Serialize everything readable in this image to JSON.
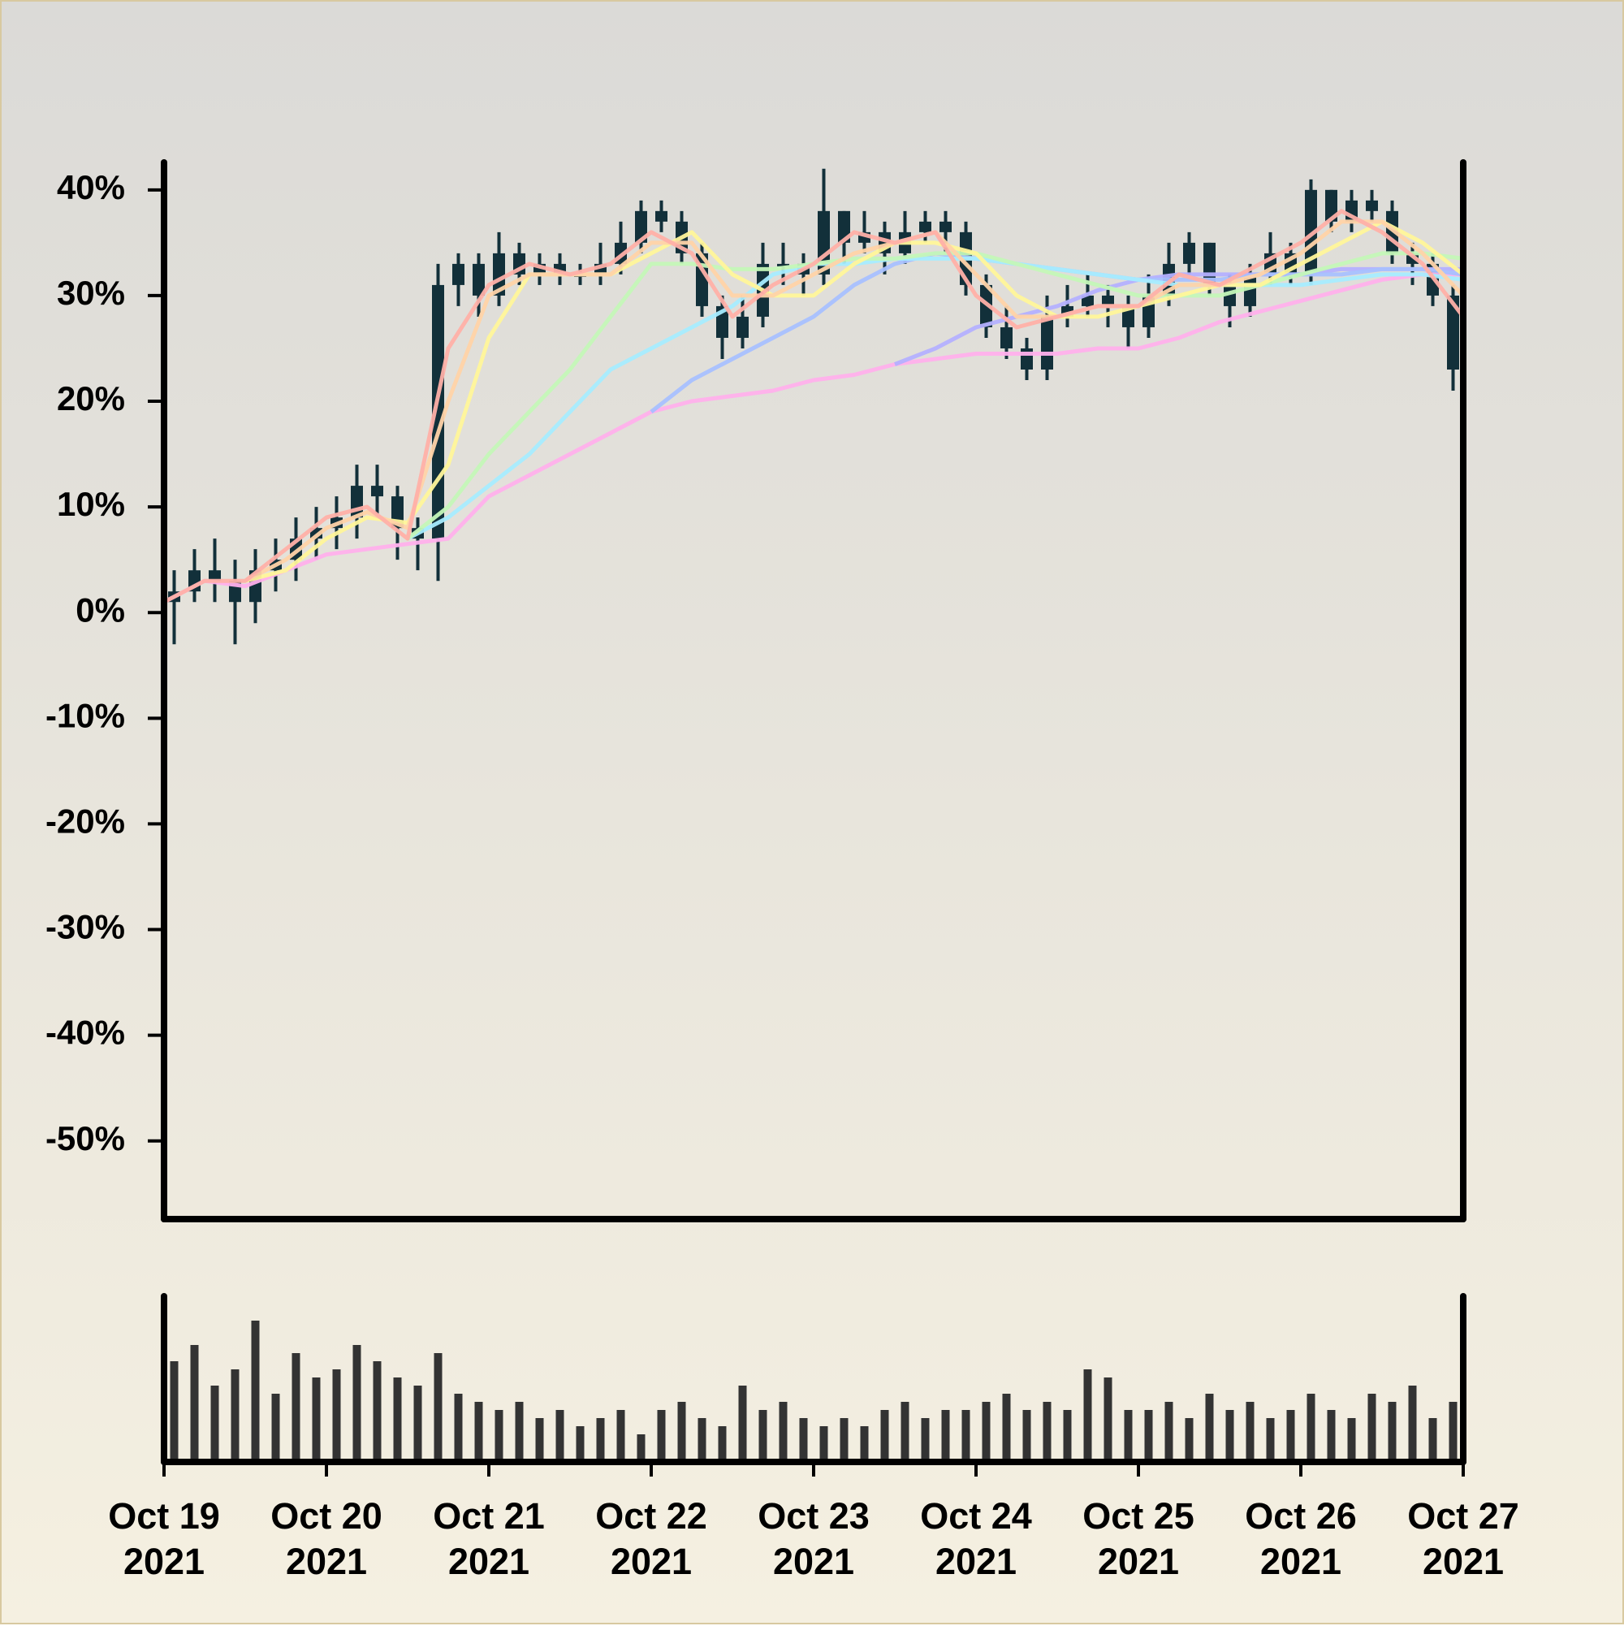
{
  "chart_data": {
    "type": "candlestick",
    "candle_color": "#12303a",
    "xlim": [
      "2021-10-19T00:00",
      "2021-10-27T00:00"
    ],
    "xticks": [
      {
        "value": "2021-10-19T00:00",
        "label": "Oct 19 2021"
      },
      {
        "value": "2021-10-20T00:00",
        "label": "Oct 20 2021"
      },
      {
        "value": "2021-10-21T00:00",
        "label": "Oct 21 2021"
      },
      {
        "value": "2021-10-22T00:00",
        "label": "Oct 22 2021"
      },
      {
        "value": "2021-10-23T00:00",
        "label": "Oct 23 2021"
      },
      {
        "value": "2021-10-24T00:00",
        "label": "Oct 24 2021"
      },
      {
        "value": "2021-10-25T00:00",
        "label": "Oct 25 2021"
      },
      {
        "value": "2021-10-26T00:00",
        "label": "Oct 26 2021"
      },
      {
        "value": "2021-10-27T00:00",
        "label": "Oct 27 2021"
      }
    ],
    "ylim": [
      -57.4,
      42.6
    ],
    "yticks": [
      {
        "value": 40,
        "label": "40%"
      },
      {
        "value": 30,
        "label": "30%"
      },
      {
        "value": 20,
        "label": "20%"
      },
      {
        "value": 10,
        "label": "10%"
      },
      {
        "value": 0,
        "label": "0%"
      },
      {
        "value": -10,
        "label": "-10%"
      },
      {
        "value": -20,
        "label": "-20%"
      },
      {
        "value": -30,
        "label": "-30%"
      },
      {
        "value": -40,
        "label": "-40%"
      },
      {
        "value": -50,
        "label": "-50%"
      }
    ],
    "x": [
      "2021-10-19T01:30",
      "2021-10-19T04:30",
      "2021-10-19T07:30",
      "2021-10-19T10:30",
      "2021-10-19T13:30",
      "2021-10-19T16:30",
      "2021-10-19T19:30",
      "2021-10-19T22:30",
      "2021-10-20T01:30",
      "2021-10-20T04:30",
      "2021-10-20T07:30",
      "2021-10-20T10:30",
      "2021-10-20T13:30",
      "2021-10-20T16:30",
      "2021-10-20T19:30",
      "2021-10-20T22:30",
      "2021-10-21T01:30",
      "2021-10-21T04:30",
      "2021-10-21T07:30",
      "2021-10-21T10:30",
      "2021-10-21T13:30",
      "2021-10-21T16:30",
      "2021-10-21T19:30",
      "2021-10-21T22:30",
      "2021-10-22T01:30",
      "2021-10-22T04:30",
      "2021-10-22T07:30",
      "2021-10-22T10:30",
      "2021-10-22T13:30",
      "2021-10-22T16:30",
      "2021-10-22T19:30",
      "2021-10-22T22:30",
      "2021-10-23T01:30",
      "2021-10-23T04:30",
      "2021-10-23T07:30",
      "2021-10-23T10:30",
      "2021-10-23T13:30",
      "2021-10-23T16:30",
      "2021-10-23T19:30",
      "2021-10-23T22:30",
      "2021-10-24T01:30",
      "2021-10-24T04:30",
      "2021-10-24T07:30",
      "2021-10-24T10:30",
      "2021-10-24T13:30",
      "2021-10-24T16:30",
      "2021-10-24T19:30",
      "2021-10-24T22:30",
      "2021-10-25T01:30",
      "2021-10-25T04:30",
      "2021-10-25T07:30",
      "2021-10-25T10:30",
      "2021-10-25T13:30",
      "2021-10-25T16:30",
      "2021-10-25T19:30",
      "2021-10-25T22:30",
      "2021-10-26T01:30",
      "2021-10-26T04:30",
      "2021-10-26T07:30",
      "2021-10-26T10:30",
      "2021-10-26T13:30",
      "2021-10-26T16:30",
      "2021-10-26T19:30",
      "2021-10-26T22:30"
    ],
    "open": [
      1,
      2,
      4,
      3,
      1,
      4,
      5,
      7,
      8,
      9,
      12,
      11,
      8,
      7,
      31,
      33,
      30,
      34,
      32,
      33,
      32,
      32,
      33,
      35,
      38,
      37,
      34,
      29,
      26,
      28,
      33,
      33,
      32,
      38,
      35,
      36,
      34,
      36,
      37,
      36,
      31,
      27,
      25,
      23,
      28,
      29,
      30,
      29,
      27,
      30,
      33,
      35,
      31,
      29,
      32,
      34,
      32,
      40,
      37,
      39,
      38,
      34,
      33,
      30
    ],
    "high": [
      4,
      6,
      7,
      5,
      6,
      7,
      9,
      10,
      11,
      14,
      14,
      12,
      9,
      33,
      34,
      34,
      36,
      35,
      34,
      34,
      33,
      35,
      37,
      39,
      39,
      38,
      35,
      30,
      30,
      35,
      35,
      34,
      42,
      38,
      38,
      37,
      38,
      38,
      38,
      37,
      32,
      29,
      26,
      30,
      31,
      32,
      31,
      30,
      32,
      35,
      36,
      35,
      32,
      33,
      36,
      35,
      41,
      40,
      40,
      40,
      39,
      35,
      34,
      31
    ],
    "low": [
      -3,
      1,
      1,
      -3,
      -1,
      2,
      3,
      5,
      6,
      7,
      9,
      5,
      4,
      3,
      29,
      28,
      29,
      31,
      31,
      31,
      31,
      31,
      32,
      34,
      36,
      33,
      28,
      24,
      25,
      27,
      31,
      30,
      31,
      33,
      34,
      32,
      33,
      35,
      34,
      30,
      26,
      24,
      22,
      22,
      27,
      28,
      27,
      25,
      26,
      29,
      32,
      30,
      27,
      28,
      31,
      31,
      31,
      36,
      36,
      37,
      33,
      31,
      29,
      21
    ],
    "close": [
      2,
      4,
      3,
      1,
      4,
      5,
      7,
      8,
      9,
      12,
      11,
      8,
      7,
      31,
      33,
      30,
      34,
      32,
      33,
      32,
      32,
      33,
      35,
      38,
      37,
      34,
      29,
      26,
      28,
      33,
      33,
      32,
      38,
      35,
      36,
      34,
      36,
      37,
      36,
      31,
      27,
      25,
      23,
      28,
      29,
      30,
      29,
      27,
      30,
      33,
      35,
      31,
      29,
      32,
      34,
      32,
      40,
      37,
      39,
      38,
      34,
      33,
      30,
      23
    ],
    "volume": {
      "color": "#333333",
      "ylim": [
        0,
        100
      ],
      "values": [
        60,
        70,
        45,
        55,
        85,
        40,
        65,
        50,
        55,
        70,
        60,
        50,
        45,
        65,
        40,
        35,
        30,
        35,
        25,
        30,
        20,
        25,
        30,
        15,
        30,
        35,
        25,
        20,
        45,
        30,
        35,
        25,
        20,
        25,
        20,
        30,
        35,
        25,
        30,
        30,
        35,
        40,
        30,
        35,
        30,
        55,
        50,
        30,
        30,
        35,
        25,
        40,
        30,
        35,
        25,
        30,
        40,
        30,
        25,
        40,
        35,
        45,
        25,
        35
      ]
    },
    "lines": {
      "x": [
        "2021-10-19T00:00",
        "2021-10-19T06:00",
        "2021-10-19T12:00",
        "2021-10-19T18:00",
        "2021-10-20T00:00",
        "2021-10-20T06:00",
        "2021-10-20T12:00",
        "2021-10-20T18:00",
        "2021-10-21T00:00",
        "2021-10-21T06:00",
        "2021-10-21T12:00",
        "2021-10-21T18:00",
        "2021-10-22T00:00",
        "2021-10-22T06:00",
        "2021-10-22T12:00",
        "2021-10-22T18:00",
        "2021-10-23T00:00",
        "2021-10-23T06:00",
        "2021-10-23T12:00",
        "2021-10-23T18:00",
        "2021-10-24T00:00",
        "2021-10-24T06:00",
        "2021-10-24T12:00",
        "2021-10-24T18:00",
        "2021-10-25T00:00",
        "2021-10-25T06:00",
        "2021-10-25T12:00",
        "2021-10-25T18:00",
        "2021-10-26T00:00",
        "2021-10-26T06:00",
        "2021-10-26T12:00",
        "2021-10-26T18:00",
        "2021-10-27T00:00"
      ],
      "series": [
        {
          "color": "#ffb0ec",
          "values": [
            1,
            3,
            2.5,
            4,
            5.5,
            6,
            6.5,
            7,
            11,
            13,
            15,
            17,
            19,
            20,
            20.5,
            21,
            22,
            22.5,
            23.5,
            24,
            24.5,
            24.5,
            24.5,
            25,
            25,
            26,
            27.5,
            28.5,
            29.5,
            30.5,
            31.5,
            32,
            32
          ]
        },
        {
          "color": "#b4b0ff",
          "values": [
            null,
            null,
            null,
            null,
            null,
            null,
            null,
            null,
            null,
            null,
            null,
            null,
            null,
            null,
            null,
            null,
            null,
            null,
            23.5,
            25,
            27,
            28,
            29,
            30.5,
            31.5,
            32,
            32,
            32,
            32,
            32.5,
            32.5,
            32.5,
            32.5
          ]
        },
        {
          "color": "#a8c0ff",
          "values": [
            null,
            null,
            null,
            null,
            null,
            null,
            null,
            null,
            null,
            null,
            null,
            null,
            19,
            22,
            24,
            26,
            28,
            31,
            33,
            34,
            33.5,
            33,
            32.5,
            32,
            31.5,
            31.5,
            31.5,
            32,
            32,
            32,
            32.5,
            32.5,
            32
          ]
        },
        {
          "color": "#a6ecff",
          "values": [
            null,
            null,
            null,
            null,
            null,
            null,
            7,
            9,
            12,
            15,
            19,
            23,
            25,
            27,
            29,
            32,
            33,
            33,
            33.5,
            33.5,
            33.5,
            33,
            32.5,
            32,
            31.5,
            31,
            31,
            31,
            31,
            31.5,
            32,
            32,
            31.5
          ]
        },
        {
          "color": "#c4f7b8",
          "values": [
            null,
            null,
            null,
            null,
            null,
            null,
            7,
            10,
            15,
            19,
            23,
            28,
            33,
            33,
            32.5,
            32.5,
            33,
            33.5,
            33.5,
            34,
            34,
            33,
            32,
            31,
            30,
            30,
            30,
            31,
            32,
            33,
            34,
            34,
            33.5
          ]
        },
        {
          "color": "#fff59a",
          "values": [
            null,
            null,
            3,
            4,
            7,
            9,
            8.5,
            14,
            26,
            32,
            32,
            32,
            34,
            36,
            32,
            30,
            30,
            33,
            35,
            35,
            34,
            30,
            28,
            28,
            29,
            30,
            31,
            31,
            33,
            35,
            37,
            35,
            32
          ]
        },
        {
          "color": "#ffd3a8",
          "values": [
            null,
            null,
            3,
            5,
            8,
            9.5,
            8,
            20,
            30,
            32,
            32,
            32,
            35,
            35,
            30,
            30,
            32,
            34,
            35,
            36,
            32,
            28,
            28,
            29,
            29,
            31,
            31,
            32,
            34,
            37,
            37,
            34,
            30
          ]
        },
        {
          "color": "#ffb0a8",
          "values": [
            1,
            3,
            3,
            6,
            9,
            10,
            7,
            25,
            31,
            33,
            32,
            33,
            36,
            34,
            28,
            31,
            33,
            36,
            35,
            36,
            30,
            27,
            28,
            29,
            29,
            32,
            31,
            33,
            35,
            38,
            36,
            33,
            28
          ]
        }
      ]
    }
  }
}
